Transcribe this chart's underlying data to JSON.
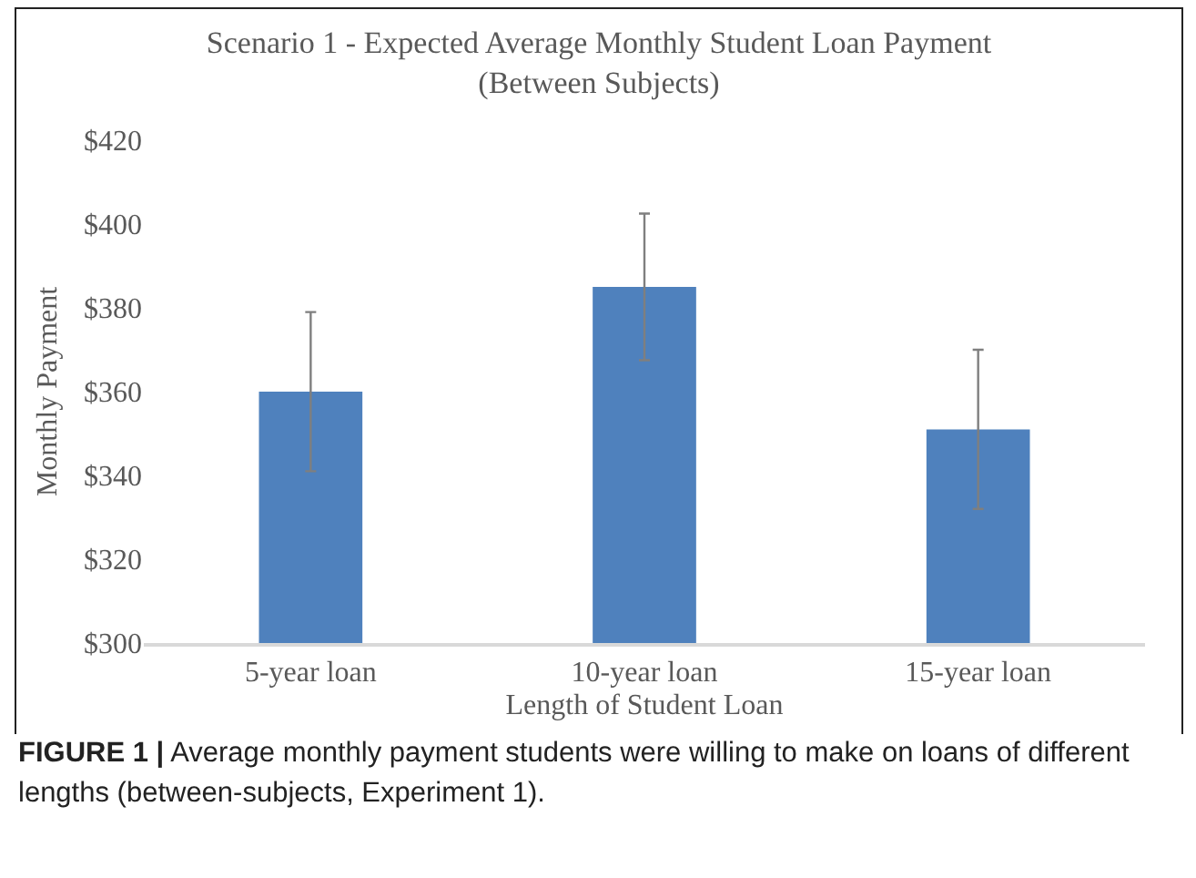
{
  "chart_data": {
    "type": "bar",
    "title": "Scenario 1 - Expected Average Monthly Student Loan Payment\n(Between Subjects)",
    "xlabel": "Length of Student Loan",
    "ylabel": "Monthly Payment",
    "categories": [
      "5-year loan",
      "10-year loan",
      "15-year loan"
    ],
    "values": [
      360,
      385,
      351
    ],
    "errors": [
      19,
      17.5,
      19
    ],
    "color": "#4f81bd",
    "ylim": [
      300,
      420
    ],
    "yticks": [
      {
        "value": 300,
        "label": "$300"
      },
      {
        "value": 320,
        "label": "$320"
      },
      {
        "value": 340,
        "label": "$340"
      },
      {
        "value": 360,
        "label": "$360"
      },
      {
        "value": 380,
        "label": "$380"
      },
      {
        "value": 400,
        "label": "$400"
      },
      {
        "value": 420,
        "label": "$420"
      }
    ],
    "grid": false,
    "annotations": [
      "**FIGURE 1 |** Average monthly payment students were willing to make on loans of different lengths (between-subjects, Experiment 1)."
    ]
  }
}
